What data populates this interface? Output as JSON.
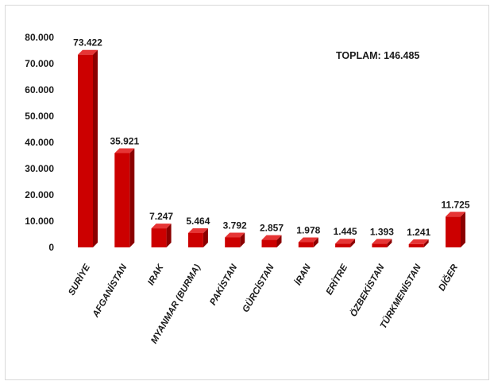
{
  "chart_data": {
    "type": "bar",
    "categories": [
      "SURİYE",
      "AFGANİSTAN",
      "IRAK",
      "MYANMAR (BURMA)",
      "PAKİSTAN",
      "GÜRCİSTAN",
      "İRAN",
      "ERİTRE",
      "ÖZBEKİSTAN",
      "TÜRKMENİSTAN",
      "DİĞER"
    ],
    "values": [
      73422,
      35921,
      7247,
      5464,
      3792,
      2857,
      1978,
      1445,
      1393,
      1241,
      11725
    ],
    "value_labels": [
      "73.422",
      "35.921",
      "7.247",
      "5.464",
      "3.792",
      "2.857",
      "1.978",
      "1.445",
      "1.393",
      "1.241",
      "11.725"
    ],
    "ylim": [
      0,
      80000
    ],
    "yticks": [
      0,
      10000,
      20000,
      30000,
      40000,
      50000,
      60000,
      70000,
      80000
    ],
    "ytick_labels": [
      "0",
      "10.000",
      "20.000",
      "30.000",
      "40.000",
      "50.000",
      "60.000",
      "70.000",
      "80.000"
    ],
    "grid": false,
    "bar_style": "3d",
    "title": "",
    "xlabel": "",
    "ylabel": "",
    "annotation": "TOPLAM: 146.485",
    "colors": {
      "bar_front": "#cc0000",
      "bar_side": "#8b0000",
      "bar_top": "#e63535"
    }
  }
}
